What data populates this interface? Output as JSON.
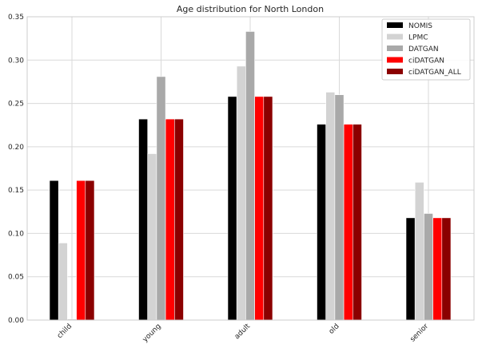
{
  "chart_data": {
    "type": "bar",
    "title": "Age distribution for North London",
    "xlabel": "",
    "ylabel": "",
    "ylim": [
      0,
      0.35
    ],
    "yticks": [
      "0.00",
      "0.05",
      "0.10",
      "0.15",
      "0.20",
      "0.25",
      "0.30",
      "0.35"
    ],
    "categories": [
      "child",
      "young",
      "adult",
      "old",
      "senior"
    ],
    "grid": true,
    "legend_position": "top-right",
    "series": [
      {
        "name": "NOMIS",
        "color": "#000000",
        "values": [
          0.161,
          0.232,
          0.258,
          0.226,
          0.118
        ]
      },
      {
        "name": "LPMC",
        "color": "#d3d3d3",
        "values": [
          0.089,
          0.192,
          0.293,
          0.263,
          0.159
        ]
      },
      {
        "name": "DATGAN",
        "color": "#a9a9a9",
        "values": [
          0.001,
          0.281,
          0.333,
          0.26,
          0.123
        ]
      },
      {
        "name": "ciDATGAN",
        "color": "#ff0000",
        "values": [
          0.161,
          0.232,
          0.258,
          0.226,
          0.118
        ]
      },
      {
        "name": "ciDATGAN_ALL",
        "color": "#8b0000",
        "values": [
          0.161,
          0.232,
          0.258,
          0.226,
          0.118
        ]
      }
    ]
  }
}
